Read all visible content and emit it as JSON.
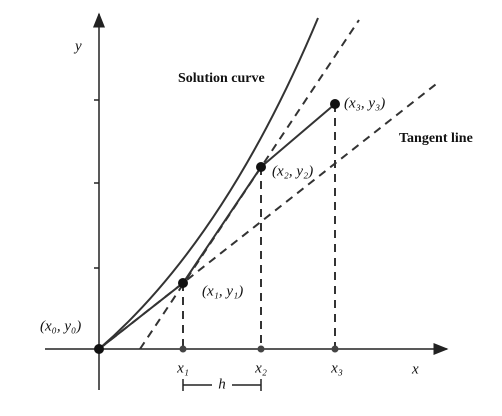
{
  "axes": {
    "x_label": "x",
    "y_label": "y"
  },
  "annotations": {
    "solution_curve": "Solution curve",
    "tangent_line": "Tangent line",
    "step": "h"
  },
  "points": [
    "(x₀, y₀)",
    "(x₁, y₁)",
    "(x₂, y₂)",
    "(x₃, y₃)"
  ],
  "x_ticks": [
    "x₁",
    "x₂",
    "x₃"
  ]
}
